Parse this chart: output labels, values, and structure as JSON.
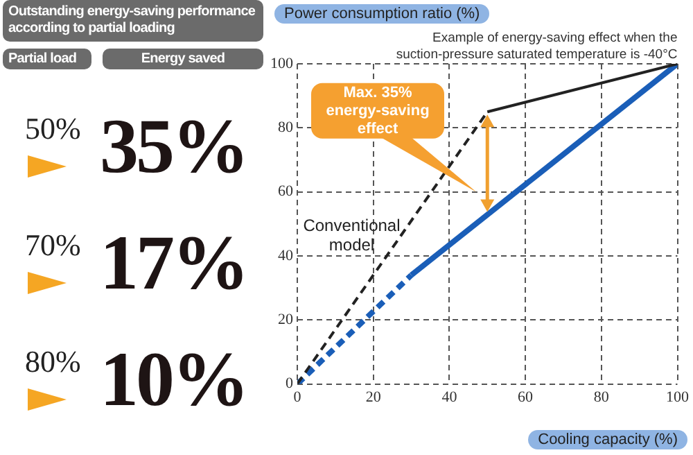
{
  "chart_data": [
    {
      "type": "other",
      "title": "Outstanding energy-saving performance according to partial loading",
      "xlabel": "Partial load",
      "ylabel": "Energy saved",
      "categories": [
        "50%",
        "70%",
        "80%"
      ],
      "value_labels": [
        "35%",
        "17%",
        "10%"
      ]
    },
    {
      "type": "line",
      "ylabel": "Power consumption ratio (%)",
      "xlabel": "Cooling capacity (%)",
      "xlim": [
        0,
        100
      ],
      "xticks": [
        0,
        20,
        40,
        60,
        80,
        100
      ],
      "ylim": [
        0,
        100
      ],
      "yticks": [
        0,
        20,
        40,
        60,
        80,
        100
      ],
      "grid": true,
      "series": [
        {
          "name": "Conventional model",
          "color": "#222222",
          "x": [
            0,
            50
          ],
          "values": [
            0,
            85
          ],
          "line_style": "dashed"
        },
        {
          "color": "#222222",
          "x": [
            50,
            100
          ],
          "values": [
            85,
            100
          ],
          "line_style": "solid"
        },
        {
          "color": "#1a5eb8",
          "x": [
            0,
            30
          ],
          "values": [
            0,
            34
          ],
          "line_style": "dashed"
        },
        {
          "color": "#1a5eb8",
          "x": [
            30,
            100
          ],
          "values": [
            34,
            100
          ],
          "line_style": "solid"
        }
      ],
      "annotations": [
        "Example of energy-saving effect when the suction-pressure saturated temperature is -40°C",
        "Max. 35% energy-saving effect"
      ]
    }
  ]
}
